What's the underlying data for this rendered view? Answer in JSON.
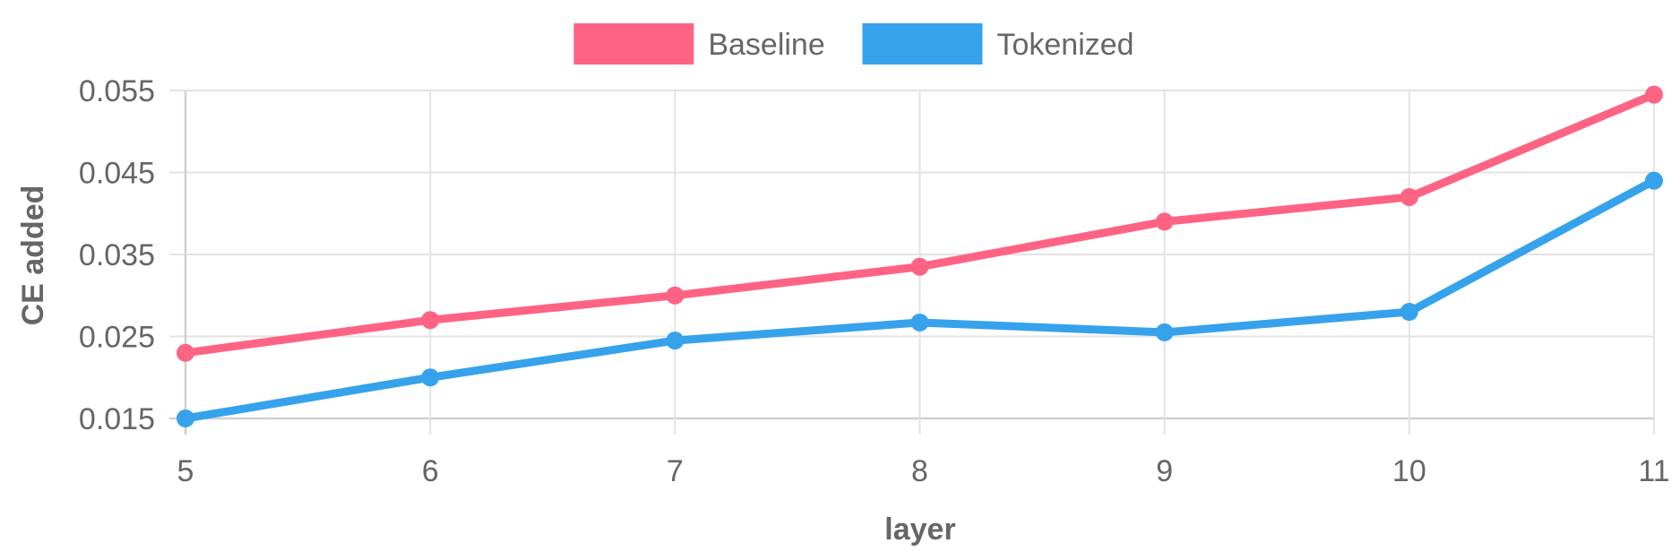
{
  "chart_data": {
    "type": "line",
    "x": [
      5,
      6,
      7,
      8,
      9,
      10,
      11
    ],
    "x_tick_labels": [
      "5",
      "6",
      "7",
      "8",
      "9",
      "10",
      "11"
    ],
    "y_tick_labels": [
      "0.055",
      "0.045",
      "0.035",
      "0.025",
      "0.015"
    ],
    "y_ticks": [
      0.055,
      0.045,
      0.035,
      0.025,
      0.015
    ],
    "xlabel": "layer",
    "ylabel": "CE added",
    "xlim": [
      5,
      11
    ],
    "ylim": [
      0.015,
      0.055
    ],
    "grid": true,
    "legend_position": "top",
    "series": [
      {
        "name": "Baseline",
        "color": "#ff6384",
        "values": [
          0.023,
          0.027,
          0.03,
          0.0335,
          0.039,
          0.042,
          0.0545
        ]
      },
      {
        "name": "Tokenized",
        "color": "#36a2eb",
        "values": [
          0.015,
          0.02,
          0.0245,
          0.0267,
          0.0255,
          0.028,
          0.044
        ]
      }
    ]
  }
}
